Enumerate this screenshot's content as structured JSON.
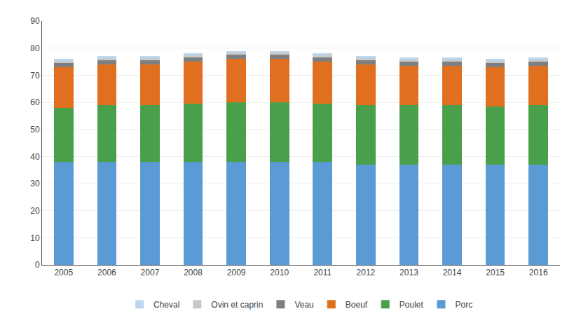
{
  "chart_data": {
    "type": "bar",
    "stacked": true,
    "categories": [
      "2005",
      "2006",
      "2007",
      "2008",
      "2009",
      "2010",
      "2011",
      "2012",
      "2013",
      "2014",
      "2015",
      "2016"
    ],
    "series": [
      {
        "name": "Porc",
        "color": "#5b9bd5",
        "values": [
          38.0,
          38.0,
          38.0,
          38.0,
          38.0,
          38.0,
          38.0,
          37.0,
          37.0,
          37.0,
          37.0,
          37.0
        ]
      },
      {
        "name": "Poulet",
        "color": "#4aa04a",
        "values": [
          20.0,
          21.0,
          21.0,
          21.5,
          22.0,
          22.0,
          21.5,
          22.0,
          22.0,
          22.0,
          21.5,
          22.0
        ]
      },
      {
        "name": "Boeuf",
        "color": "#e07020",
        "values": [
          15.0,
          15.0,
          15.0,
          15.5,
          16.0,
          16.0,
          15.5,
          15.0,
          14.5,
          14.5,
          14.5,
          14.5
        ]
      },
      {
        "name": "Veau",
        "color": "#7f7f7f",
        "values": [
          1.5,
          1.5,
          1.5,
          1.5,
          1.5,
          1.5,
          1.5,
          1.5,
          1.5,
          1.5,
          1.5,
          1.5
        ]
      },
      {
        "name": "Ovin et caprin",
        "color": "#c8c8c8",
        "values": [
          1.0,
          1.0,
          1.0,
          1.0,
          1.0,
          1.0,
          1.0,
          1.0,
          1.0,
          1.0,
          1.0,
          1.0
        ]
      },
      {
        "name": "Cheval",
        "color": "#bdd7ee",
        "values": [
          0.5,
          0.5,
          0.5,
          0.5,
          0.5,
          0.5,
          0.5,
          0.5,
          0.5,
          0.5,
          0.5,
          0.5
        ]
      }
    ],
    "ylim": [
      0,
      90
    ],
    "yticks": [
      0,
      10,
      20,
      30,
      40,
      50,
      60,
      70,
      80,
      90
    ],
    "grid": true,
    "legend": "bottom"
  }
}
